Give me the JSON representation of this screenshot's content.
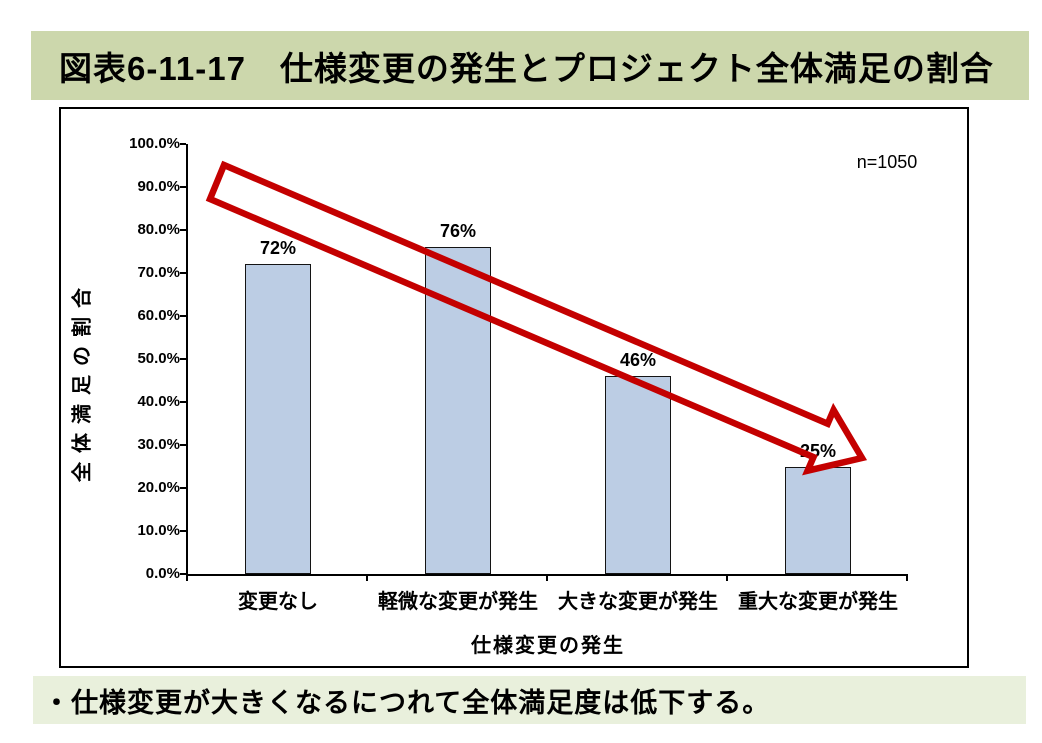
{
  "header": {
    "title": "図表6-11-17　仕様変更の発生とプロジェクト全体満足の割合",
    "background": "#CCD7AC"
  },
  "footer": {
    "note": "・仕様変更が大きくなるにつれて全体満足度は低下する。",
    "background": "#E9F0DC"
  },
  "chart_data": {
    "type": "bar",
    "categories": [
      "変更なし",
      "軽微な変更が発生",
      "大きな変更が発生",
      "重大な変更が発生"
    ],
    "values": [
      72,
      76,
      46,
      25
    ],
    "value_labels": [
      "72%",
      "76%",
      "46%",
      "25%"
    ],
    "xlabel": "仕様変更の発生",
    "ylabel": "全体満足の割合",
    "y_ticks": [
      "100.0%",
      "90.0%",
      "80.0%",
      "70.0%",
      "60.0%",
      "50.0%",
      "40.0%",
      "30.0%",
      "20.0%",
      "10.0%",
      "0.0%"
    ],
    "ylim": [
      0,
      100
    ],
    "annotation": "n=1050",
    "grid": false,
    "legend": "none",
    "colors": {
      "bar_fill": "#BCCDE4",
      "bar_border": "#141414",
      "axis": "#000000",
      "arrow": "#C40000",
      "text": "#000000"
    },
    "trend_annotation": "downward block arrow from upper-left to lower-right, red outline, no fill"
  }
}
